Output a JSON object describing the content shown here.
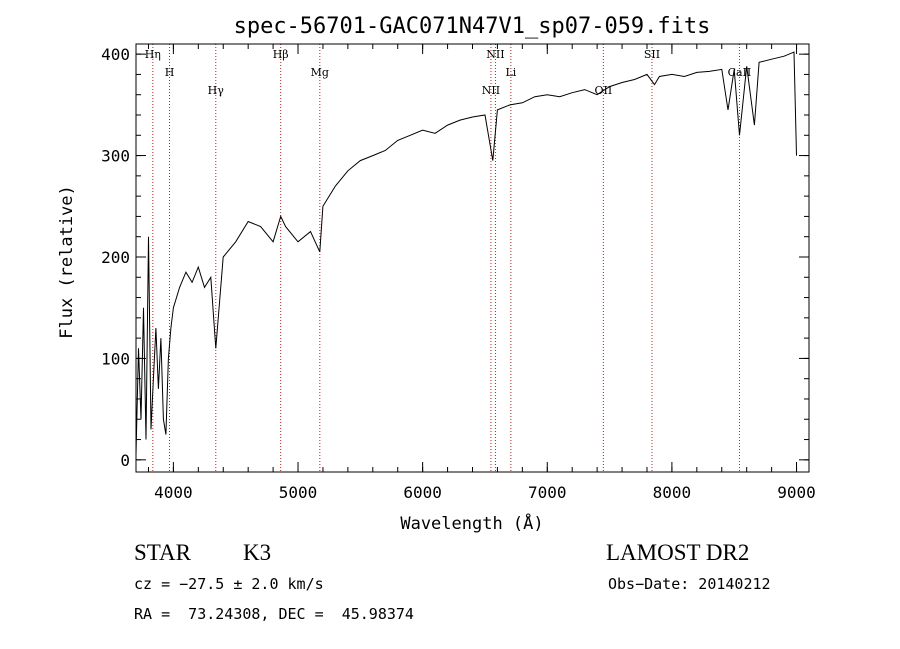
{
  "chart_data": {
    "type": "line",
    "title": "spec-56701-GAC071N47V1_sp07-059.fits",
    "xlabel": "Wavelength (Å)",
    "ylabel": "Flux (relative)",
    "xlim": [
      3700,
      9100
    ],
    "ylim": [
      -12,
      410
    ],
    "xticks": [
      4000,
      5000,
      6000,
      7000,
      8000,
      9000
    ],
    "xtick_labels": [
      "4000",
      "5000",
      "6000",
      "7000",
      "8000",
      "9000"
    ],
    "yticks": [
      0,
      100,
      200,
      300,
      400
    ],
    "ytick_labels": [
      "0",
      "100",
      "200",
      "300",
      "400"
    ],
    "grid": false,
    "series": [
      {
        "x": [
          3700,
          3720,
          3740,
          3760,
          3780,
          3800,
          3820,
          3840,
          3860,
          3880,
          3900,
          3920,
          3940,
          3960,
          3980,
          4000,
          4050,
          4100,
          4150,
          4200,
          4250,
          4300,
          4340,
          4400,
          4500,
          4600,
          4700,
          4800,
          4861,
          4900,
          5000,
          5100,
          5175,
          5200,
          5300,
          5400,
          5500,
          5600,
          5700,
          5800,
          5900,
          6000,
          6100,
          6200,
          6300,
          6400,
          6500,
          6563,
          6600,
          6700,
          6800,
          6900,
          7000,
          7100,
          7200,
          7300,
          7400,
          7500,
          7600,
          7700,
          7800,
          7860,
          7900,
          8000,
          8100,
          8200,
          8300,
          8400,
          8450,
          8500,
          8542,
          8600,
          8662,
          8700,
          8800,
          8900,
          8980,
          9000
        ],
        "y": [
          5,
          110,
          40,
          150,
          20,
          220,
          30,
          80,
          130,
          70,
          120,
          40,
          25,
          100,
          130,
          150,
          170,
          185,
          175,
          190,
          170,
          180,
          110,
          200,
          215,
          235,
          230,
          215,
          240,
          230,
          215,
          225,
          205,
          250,
          270,
          285,
          295,
          300,
          305,
          315,
          320,
          325,
          322,
          330,
          335,
          338,
          340,
          295,
          345,
          350,
          352,
          358,
          360,
          358,
          362,
          365,
          360,
          368,
          372,
          375,
          380,
          370,
          378,
          380,
          378,
          382,
          383,
          385,
          345,
          385,
          320,
          388,
          330,
          392,
          395,
          398,
          402,
          300
        ]
      }
    ],
    "lines": [
      {
        "label": "Hη",
        "x": 3835
      },
      {
        "label": "H",
        "x": 3969
      },
      {
        "label": "Hγ",
        "x": 4340
      },
      {
        "label": "Hβ",
        "x": 4861
      },
      {
        "label": "Mg",
        "x": 5175
      },
      {
        "label": "NII",
        "x": 6548
      },
      {
        "label": "NII",
        "x": 6584
      },
      {
        "label": "Li",
        "x": 6708
      },
      {
        "label": "OII",
        "x": 7450
      },
      {
        "label": "SII",
        "x": 7840
      },
      {
        "label": "CaII",
        "x": 8542
      }
    ],
    "colors": {
      "spectrum": "#000000",
      "lines": "#b22222"
    }
  },
  "info": {
    "class": "STAR",
    "subclass": "K3",
    "survey": "LAMOST DR2",
    "cz": "cz = −27.5 ± 2.0 km/s",
    "obs_date": "Obs−Date: 20140212",
    "radec": "RA =  73.24308, DEC =  45.98374"
  }
}
